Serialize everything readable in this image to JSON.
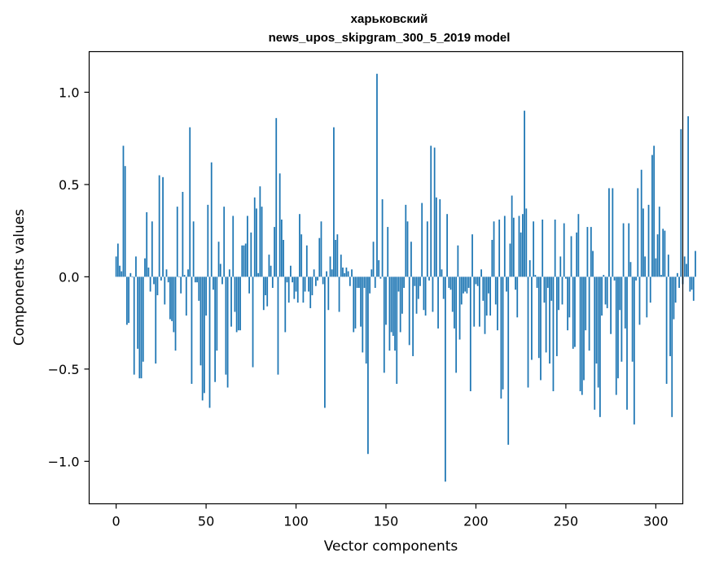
{
  "chart_data": {
    "type": "bar",
    "title": "харьковский",
    "subtitle": "news_upos_skipgram_300_5_2019 model",
    "xlabel": "Vector components",
    "ylabel": "Components values",
    "xlim": [
      -15,
      315
    ],
    "ylim": [
      -1.23,
      1.22
    ],
    "xticks": [
      0,
      50,
      100,
      150,
      200,
      250,
      300
    ],
    "xtick_labels": [
      "0",
      "50",
      "100",
      "150",
      "200",
      "250",
      "300"
    ],
    "yticks": [
      -1.0,
      -0.5,
      0.0,
      0.5,
      1.0
    ],
    "ytick_labels": [
      "−1.0",
      "−0.5",
      "0.0",
      "0.5",
      "1.0"
    ],
    "grid": false,
    "legend": "none",
    "bar_color": "#1f77b4",
    "values": [
      0.11,
      0.18,
      0.06,
      0.03,
      0.71,
      0.6,
      -0.26,
      -0.25,
      0.02,
      0.0,
      -0.53,
      0.11,
      -0.39,
      -0.55,
      -0.55,
      -0.46,
      0.1,
      0.35,
      0.05,
      -0.08,
      0.3,
      -0.04,
      -0.47,
      -0.1,
      0.55,
      -0.02,
      0.54,
      -0.15,
      0.04,
      -0.03,
      -0.23,
      -0.24,
      -0.3,
      -0.4,
      0.38,
      0.0,
      -0.09,
      0.46,
      0.01,
      -0.21,
      0.04,
      0.81,
      -0.58,
      0.3,
      -0.03,
      -0.03,
      -0.13,
      -0.48,
      -0.67,
      -0.63,
      -0.21,
      0.39,
      -0.71,
      0.62,
      -0.07,
      -0.57,
      -0.4,
      0.19,
      0.07,
      -0.04,
      0.38,
      -0.53,
      -0.6,
      0.04,
      -0.27,
      0.33,
      -0.19,
      -0.3,
      -0.29,
      -0.29,
      0.17,
      0.17,
      0.18,
      0.33,
      -0.09,
      0.24,
      -0.49,
      0.43,
      0.37,
      0.02,
      0.49,
      0.38,
      -0.18,
      -0.1,
      -0.16,
      0.12,
      0.06,
      -0.06,
      0.27,
      0.86,
      -0.53,
      0.56,
      0.31,
      0.2,
      -0.3,
      -0.03,
      -0.14,
      0.06,
      -0.03,
      -0.12,
      -0.08,
      -0.14,
      0.34,
      0.23,
      -0.14,
      -0.08,
      0.17,
      -0.08,
      -0.17,
      -0.1,
      0.04,
      -0.05,
      -0.02,
      0.21,
      0.3,
      -0.04,
      -0.71,
      0.03,
      -0.18,
      0.11,
      0.04,
      0.81,
      0.2,
      0.23,
      -0.19,
      0.12,
      0.05,
      0.02,
      0.05,
      0.03,
      -0.05,
      0.04,
      -0.3,
      -0.28,
      -0.06,
      -0.06,
      -0.27,
      -0.41,
      -0.06,
      -0.47,
      -0.96,
      -0.09,
      0.04,
      0.19,
      -0.06,
      1.1,
      0.09,
      -0.01,
      0.42,
      -0.52,
      -0.26,
      0.27,
      -0.4,
      -0.3,
      -0.32,
      -0.4,
      -0.58,
      -0.08,
      -0.3,
      -0.2,
      -0.06,
      0.39,
      0.3,
      -0.37,
      0.19,
      -0.43,
      -0.05,
      -0.2,
      -0.12,
      -0.05,
      0.4,
      -0.18,
      -0.21,
      0.3,
      -0.02,
      0.71,
      -0.19,
      0.7,
      0.43,
      -0.28,
      0.42,
      0.04,
      -0.12,
      -1.11,
      0.34,
      -0.06,
      -0.07,
      -0.19,
      -0.28,
      -0.52,
      0.17,
      -0.34,
      -0.15,
      -0.09,
      -0.08,
      -0.09,
      -0.06,
      -0.62,
      0.23,
      -0.27,
      -0.04,
      -0.05,
      -0.27,
      0.04,
      -0.13,
      -0.31,
      -0.21,
      -0.09,
      -0.21,
      0.2,
      0.3,
      -0.15,
      -0.29,
      0.31,
      -0.66,
      -0.61,
      0.33,
      -0.08,
      -0.91,
      0.18,
      0.44,
      0.32,
      -0.07,
      -0.22,
      0.33,
      0.24,
      0.34,
      0.9,
      0.37,
      -0.6,
      0.09,
      -0.45,
      0.3,
      0.01,
      -0.06,
      -0.44,
      -0.56,
      0.31,
      -0.14,
      -0.41,
      -0.06,
      -0.47,
      -0.13,
      -0.62,
      0.31,
      -0.43,
      -0.18,
      0.11,
      -0.15,
      0.29,
      -0.01,
      -0.29,
      -0.22,
      0.22,
      -0.39,
      -0.38,
      0.24,
      0.34,
      -0.62,
      -0.64,
      -0.56,
      -0.29,
      0.27,
      -0.4,
      0.27,
      0.14,
      -0.72,
      -0.47,
      -0.6,
      -0.76,
      -0.21,
      0.01,
      -0.15,
      -0.17,
      0.48,
      -0.31,
      0.48,
      -0.02,
      -0.64,
      -0.55,
      -0.18,
      -0.46,
      0.29,
      -0.28,
      -0.72,
      0.29,
      0.08,
      -0.46,
      -0.8,
      -0.02,
      0.48,
      -0.26,
      0.58,
      0.37,
      0.11,
      -0.22,
      0.39,
      -0.14,
      0.66,
      0.71,
      0.1,
      0.23,
      0.38,
      0.01,
      0.26,
      0.25,
      -0.58,
      0.12,
      -0.43,
      -0.76,
      -0.23,
      -0.14,
      0.02,
      -0.06,
      0.8,
      -0.04,
      0.11,
      0.07,
      0.87,
      -0.08,
      -0.07,
      -0.13,
      0.14
    ]
  }
}
